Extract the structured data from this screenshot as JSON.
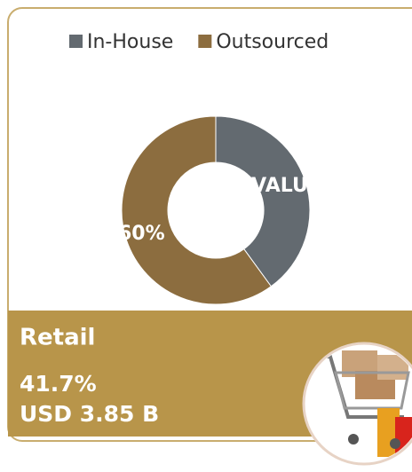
{
  "chart_data": {
    "type": "donut",
    "categories": [
      "In-House",
      "Outsourced"
    ],
    "values": [
      40,
      60
    ],
    "value_labels": [
      "[VALUE],",
      "60%"
    ],
    "colors": [
      "#636a70",
      "#8c6d3f"
    ]
  },
  "panel": {
    "title": "Retail",
    "share": "41.7%",
    "amount": "USD 3.85 B"
  }
}
